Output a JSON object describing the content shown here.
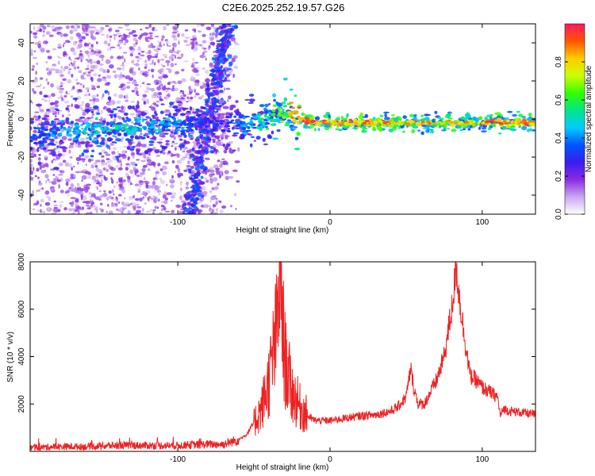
{
  "page": {
    "title": "C2E6.2025.252.19.57.G26"
  },
  "colorbar": {
    "label": "Normalized spectral amplitude",
    "ticks": [
      "0.0",
      "0.2",
      "0.4",
      "0.6",
      "0.8"
    ],
    "tick_values": [
      0.0,
      0.2,
      0.4,
      0.6,
      0.8
    ],
    "range": [
      0,
      1
    ],
    "colors": [
      "#ffffff",
      "#c9a6f2",
      "#8a2be2",
      "#3a1cf0",
      "#0055ff",
      "#00ccff",
      "#00e68a",
      "#33ff00",
      "#ccff00",
      "#ffcc00",
      "#ff5500",
      "#ff1a66"
    ]
  },
  "chart_data": [
    {
      "type": "heatmap",
      "title": "C2E6.2025.252.19.57.G26",
      "xlabel": "Height of straight line (km)",
      "ylabel": "Frequency (Hz)",
      "xlim": [
        -197,
        135
      ],
      "ylim": [
        -50,
        50
      ],
      "xticks": [
        -100,
        0,
        100
      ],
      "xtick_labels": [
        "-100",
        "0",
        "100"
      ],
      "yticks": [
        -40,
        -20,
        0,
        20,
        40
      ],
      "ytick_labels": [
        "-40",
        "-20",
        "0",
        "20",
        "40"
      ],
      "ridge": {
        "description": "dominant spectral ridge",
        "x": [
          -197,
          -180,
          -160,
          -140,
          -120,
          -100,
          -85,
          -70,
          -60,
          -50,
          -40,
          -30,
          -20,
          -10,
          0,
          20,
          50,
          80,
          100,
          110,
          120,
          135
        ],
        "frequency": [
          -10,
          -8,
          -6,
          -5,
          -4,
          -3,
          -2,
          -3,
          -4,
          -3,
          0,
          4,
          0,
          -2,
          -2,
          -2,
          -2,
          -2,
          -2,
          -1,
          -2,
          -2
        ],
        "amplitude": [
          0.35,
          0.45,
          0.5,
          0.55,
          0.5,
          0.45,
          0.35,
          0.3,
          0.4,
          0.5,
          0.6,
          0.75,
          0.95,
          0.95,
          0.95,
          0.9,
          0.9,
          0.85,
          0.9,
          0.95,
          0.95,
          0.95
        ]
      }
    },
    {
      "type": "line",
      "xlabel": "Height of straight line (km)",
      "ylabel": "SNR (10 * v/v)",
      "xlim": [
        -197,
        135
      ],
      "ylim": [
        0,
        8000
      ],
      "xticks": [
        -100,
        0,
        100
      ],
      "xtick_labels": [
        "-100",
        "0",
        "100"
      ],
      "yticks": [
        2000,
        4000,
        6000,
        8000
      ],
      "ytick_labels": [
        "2000",
        "4000",
        "6000",
        "8000"
      ],
      "series": [
        {
          "name": "SNR",
          "color": "#ee2222",
          "x": [
            -197,
            -180,
            -160,
            -140,
            -120,
            -100,
            -80,
            -70,
            -60,
            -55,
            -50,
            -45,
            -40,
            -35,
            -33,
            -30,
            -25,
            -20,
            -15,
            -10,
            0,
            10,
            20,
            30,
            40,
            45,
            50,
            53,
            55,
            58,
            62,
            70,
            75,
            80,
            83,
            85,
            88,
            92,
            96,
            100,
            105,
            110,
            112,
            114,
            118,
            125,
            135
          ],
          "values": [
            150,
            200,
            200,
            250,
            250,
            250,
            300,
            300,
            500,
            700,
            1200,
            1800,
            3000,
            5000,
            8000,
            4000,
            2500,
            1900,
            1500,
            1300,
            1300,
            1400,
            1500,
            1550,
            1700,
            1900,
            2300,
            3500,
            2700,
            2000,
            2000,
            3000,
            4000,
            6000,
            7800,
            6500,
            5000,
            3200,
            3000,
            2700,
            2500,
            2300,
            1500,
            1800,
            1700,
            1650,
            1550
          ]
        }
      ]
    }
  ]
}
